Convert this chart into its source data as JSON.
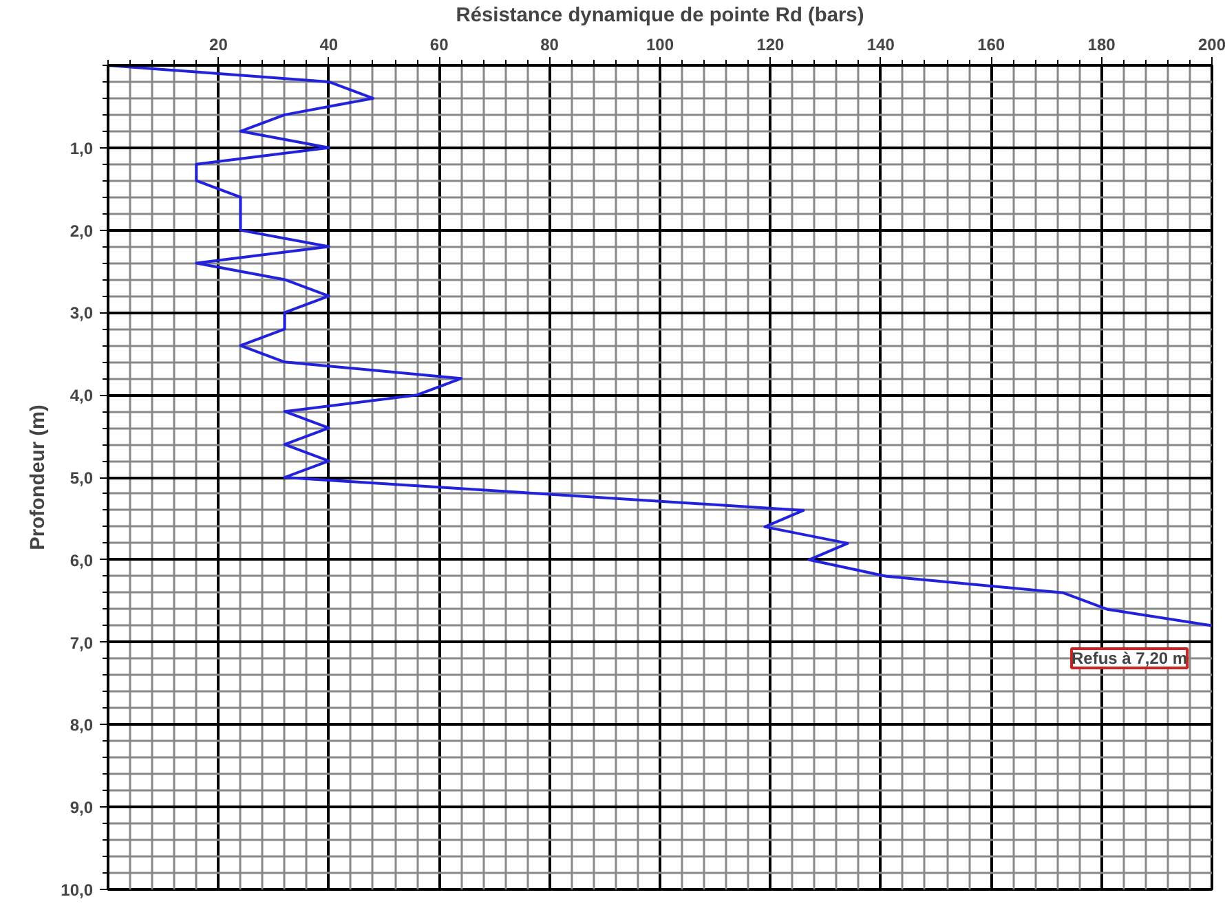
{
  "chart_data": {
    "type": "line",
    "xlabel": "Résistance dynamique de pointe Rd (bars)",
    "ylabel": "Profondeur (m)",
    "series": [
      {
        "color": "#2222dd",
        "x": [
          0,
          40,
          48,
          32,
          24,
          40,
          16,
          16,
          24,
          24,
          24,
          40,
          16,
          32,
          40,
          32,
          32,
          24,
          32,
          64,
          56,
          32,
          40,
          32,
          40,
          32,
          126,
          119,
          134,
          127,
          141,
          173,
          181,
          200
        ],
        "values": [
          0,
          0.2,
          0.4,
          0.6,
          0.8,
          1.0,
          1.2,
          1.4,
          1.6,
          1.8,
          2.0,
          2.2,
          2.4,
          2.6,
          2.8,
          3.0,
          3.2,
          3.4,
          3.6,
          3.8,
          4.0,
          4.2,
          4.4,
          4.6,
          4.8,
          5.0,
          5.4,
          5.6,
          5.8,
          6.0,
          6.2,
          6.4,
          6.6,
          6.8
        ]
      }
    ],
    "xlim": [
      0,
      200
    ],
    "ylim": [
      10,
      0
    ],
    "xticks": [
      {
        "value": 0,
        "label": null
      },
      {
        "value": 4,
        "label": null
      },
      {
        "value": 8,
        "label": null
      },
      {
        "value": 12,
        "label": null
      },
      {
        "value": 16,
        "label": null
      },
      20,
      {
        "value": 24,
        "label": null
      },
      {
        "value": 28,
        "label": null
      },
      {
        "value": 32,
        "label": null
      },
      {
        "value": 36,
        "label": null
      },
      40,
      {
        "value": 44,
        "label": null
      },
      {
        "value": 48,
        "label": null
      },
      {
        "value": 52,
        "label": null
      },
      {
        "value": 56,
        "label": null
      },
      60,
      {
        "value": 64,
        "label": null
      },
      {
        "value": 68,
        "label": null
      },
      {
        "value": 72,
        "label": null
      },
      {
        "value": 76,
        "label": null
      },
      80,
      {
        "value": 84,
        "label": null
      },
      {
        "value": 88,
        "label": null
      },
      {
        "value": 92,
        "label": null
      },
      {
        "value": 96,
        "label": null
      },
      100,
      {
        "value": 104,
        "label": null
      },
      {
        "value": 108,
        "label": null
      },
      {
        "value": 112,
        "label": null
      },
      {
        "value": 116,
        "label": null
      },
      120,
      {
        "value": 124,
        "label": null
      },
      {
        "value": 128,
        "label": null
      },
      {
        "value": 132,
        "label": null
      },
      {
        "value": 136,
        "label": null
      },
      140,
      {
        "value": 144,
        "label": null
      },
      {
        "value": 148,
        "label": null
      },
      {
        "value": 152,
        "label": null
      },
      {
        "value": 156,
        "label": null
      },
      160,
      {
        "value": 164,
        "label": null
      },
      {
        "value": 168,
        "label": null
      },
      {
        "value": 172,
        "label": null
      },
      {
        "value": 176,
        "label": null
      },
      180,
      {
        "value": 184,
        "label": null
      },
      {
        "value": 188,
        "label": null
      },
      {
        "value": 192,
        "label": null
      },
      {
        "value": 196,
        "label": null
      },
      200
    ],
    "yticks": [
      {
        "value": 0,
        "label": null
      },
      {
        "value": 0.2,
        "label": null
      },
      {
        "value": 0.4,
        "label": null
      },
      {
        "value": 0.6,
        "label": null
      },
      {
        "value": 0.8,
        "label": null
      },
      {
        "value": 1,
        "label": "1,0"
      },
      {
        "value": 1.2,
        "label": null
      },
      {
        "value": 1.4,
        "label": null
      },
      {
        "value": 1.6,
        "label": null
      },
      {
        "value": 1.8,
        "label": null
      },
      {
        "value": 2,
        "label": "2,0"
      },
      {
        "value": 2.2,
        "label": null
      },
      {
        "value": 2.4,
        "label": null
      },
      {
        "value": 2.6,
        "label": null
      },
      {
        "value": 2.8,
        "label": null
      },
      {
        "value": 3,
        "label": "3,0"
      },
      {
        "value": 3.2,
        "label": null
      },
      {
        "value": 3.4,
        "label": null
      },
      {
        "value": 3.6,
        "label": null
      },
      {
        "value": 3.8,
        "label": null
      },
      {
        "value": 4,
        "label": "4,0"
      },
      {
        "value": 4.2,
        "label": null
      },
      {
        "value": 4.4,
        "label": null
      },
      {
        "value": 4.6,
        "label": null
      },
      {
        "value": 4.8,
        "label": null
      },
      {
        "value": 5,
        "label": "5,0"
      },
      {
        "value": 5.2,
        "label": null
      },
      {
        "value": 5.4,
        "label": null
      },
      {
        "value": 5.6,
        "label": null
      },
      {
        "value": 5.8,
        "label": null
      },
      {
        "value": 6,
        "label": "6,0"
      },
      {
        "value": 6.2,
        "label": null
      },
      {
        "value": 6.4,
        "label": null
      },
      {
        "value": 6.6,
        "label": null
      },
      {
        "value": 6.8,
        "label": null
      },
      {
        "value": 7,
        "label": "7,0"
      },
      {
        "value": 7.2,
        "label": null
      },
      {
        "value": 7.4,
        "label": null
      },
      {
        "value": 7.6,
        "label": null
      },
      {
        "value": 7.8,
        "label": null
      },
      {
        "value": 8,
        "label": "8,0"
      },
      {
        "value": 8.2,
        "label": null
      },
      {
        "value": 8.4,
        "label": null
      },
      {
        "value": 8.6,
        "label": null
      },
      {
        "value": 8.8,
        "label": null
      },
      {
        "value": 9,
        "label": "9,0"
      },
      {
        "value": 9.2,
        "label": null
      },
      {
        "value": 9.4,
        "label": null
      },
      {
        "value": 9.6,
        "label": null
      },
      {
        "value": 9.8,
        "label": null
      },
      {
        "value": 10,
        "label": "10,0"
      }
    ],
    "grid": true,
    "annotations": [
      "Refus à 7,20 m"
    ]
  }
}
